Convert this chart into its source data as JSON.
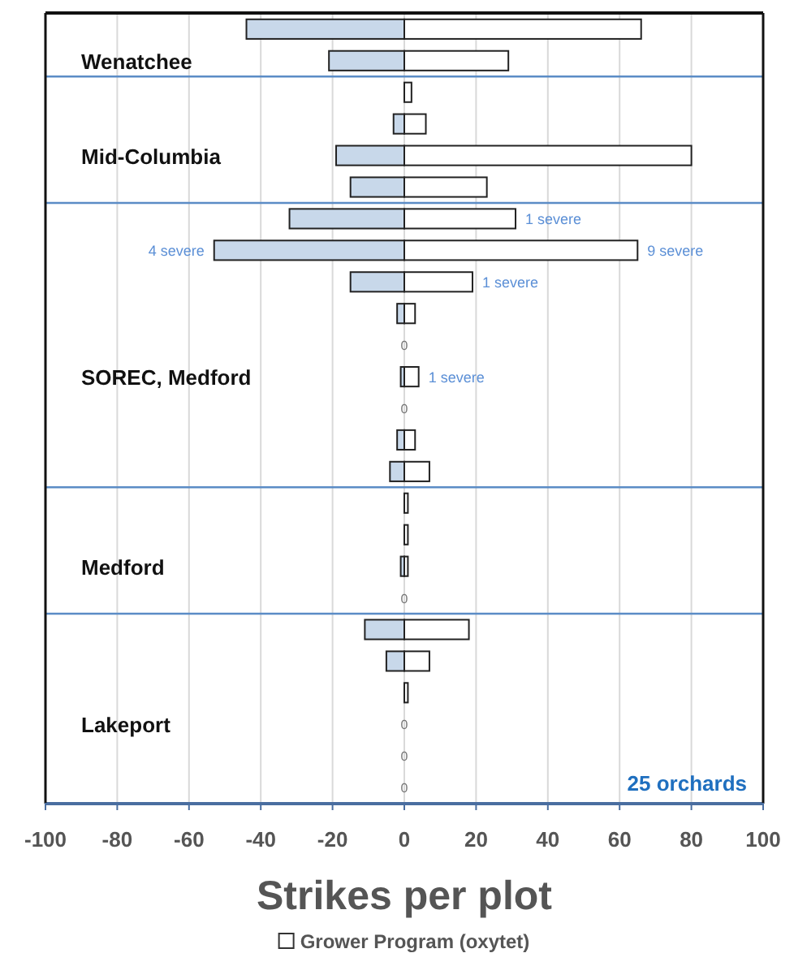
{
  "chart_data": {
    "type": "bar",
    "orientation": "horizontal",
    "stacked": true,
    "categories": [
      null,
      "Wenatchee",
      null,
      null,
      "Mid-Columbia",
      null,
      null,
      null,
      null,
      null,
      null,
      "SOREC, Medford",
      null,
      null,
      null,
      null,
      null,
      "Medford",
      null,
      null,
      null,
      null,
      "Lakeport",
      null,
      null
    ],
    "series": [
      {
        "color": "#c8d8ea",
        "values": [
          -44,
          -21,
          0,
          -3,
          -19,
          -15,
          -32,
          -53,
          -15,
          -2,
          0,
          -1,
          0,
          -2,
          -4,
          0,
          0,
          -1,
          0,
          -11,
          -5,
          0,
          0,
          0,
          0
        ]
      },
      {
        "name": "Grower Program (oxytet)",
        "color": "#ffffff",
        "values": [
          66,
          29,
          2,
          6,
          80,
          23,
          31,
          65,
          19,
          3,
          0,
          4,
          0,
          3,
          7,
          1,
          1,
          1,
          0,
          18,
          7,
          1,
          0,
          0,
          0
        ],
        "value_labels": [
          null,
          null,
          null,
          null,
          null,
          null,
          null,
          null,
          null,
          null,
          "0",
          null,
          "0",
          null,
          null,
          null,
          null,
          null,
          "0",
          null,
          null,
          null,
          "0",
          "0",
          "0"
        ]
      }
    ],
    "xlim": [
      -100,
      100
    ],
    "xticks": [
      -100,
      -80,
      -60,
      -40,
      -20,
      0,
      20,
      40,
      60,
      80,
      100
    ],
    "xlabel": "Strikes per plot",
    "grid": "x",
    "legend": "bottom",
    "annotations": [
      {
        "text": "1 severe",
        "x": 31
      },
      {
        "text": "4 severe",
        "x": -53
      },
      {
        "text": "9 severe",
        "x": 65
      },
      {
        "text": "1 severe",
        "x": 19
      },
      {
        "text": "1 severe",
        "x": 4
      },
      "25 orchards"
    ]
  }
}
